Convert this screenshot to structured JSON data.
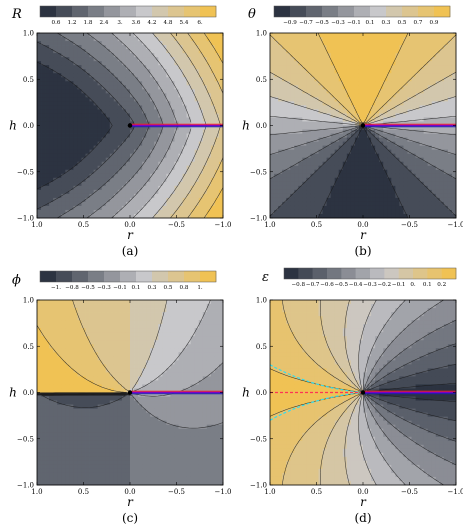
{
  "chart_data": [
    {
      "panel": "(a)",
      "type": "contour",
      "symbol": "R",
      "xlabel": "r",
      "ylabel": "h",
      "xlim": [
        1.0,
        -1.0
      ],
      "ylim": [
        -1.0,
        1.0
      ],
      "x_ticks": [
        "1.0",
        "0.5",
        "0.0",
        "−0.5",
        "−1.0"
      ],
      "y_ticks": [
        "1.0",
        "0.5",
        "0.0",
        "−0.5",
        "−1.0"
      ],
      "colorbar_ticks": [
        "0.6",
        "1.2",
        "1.8",
        "2.4",
        "3.",
        "3.6",
        "4.2",
        "4.8",
        "5.4",
        "6."
      ],
      "contour_levels": [
        0.6,
        1.2,
        1.8,
        2.4,
        3.0,
        3.6,
        4.2,
        4.8,
        5.4,
        6.0
      ],
      "caption": "(a)"
    },
    {
      "panel": "(b)",
      "type": "contour",
      "symbol": "θ",
      "xlabel": "r",
      "ylabel": "h",
      "xlim": [
        1.0,
        -1.0
      ],
      "ylim": [
        -1.0,
        1.0
      ],
      "x_ticks": [
        "1.0",
        "0.5",
        "0.0",
        "−0.5",
        "−1.0"
      ],
      "y_ticks": [
        "1.0",
        "0.5",
        "0.0",
        "−0.5",
        "−1.0"
      ],
      "colorbar_ticks": [
        "−0.9",
        "−0.7",
        "−0.5",
        "−0.3",
        "−0.1",
        "0.1",
        "0.3",
        "0.5",
        "0.7",
        "0.9"
      ],
      "contour_levels": [
        -0.9,
        -0.7,
        -0.5,
        -0.3,
        -0.1,
        0.1,
        0.3,
        0.5,
        0.7,
        0.9
      ],
      "caption": "(b)"
    },
    {
      "panel": "(c)",
      "type": "contour",
      "symbol": "ϕ",
      "xlabel": "r",
      "ylabel": "h",
      "xlim": [
        1.0,
        -1.0
      ],
      "ylim": [
        -1.0,
        1.0
      ],
      "x_ticks": [
        "1.0",
        "0.5",
        "0.0",
        "−0.5",
        "−1.0"
      ],
      "y_ticks": [
        "1.0",
        "0.5",
        "0.0",
        "−0.5",
        "−1.0"
      ],
      "colorbar_ticks": [
        "−1.",
        "−0.8",
        "−0.5",
        "−0.3",
        "−0.1",
        "0.1",
        "0.3",
        "0.5",
        "0.8",
        "1."
      ],
      "contour_levels": [
        -1.0,
        -0.8,
        -0.5,
        -0.3,
        -0.1,
        0.1,
        0.3,
        0.5,
        0.8,
        1.0
      ],
      "caption": "(c)"
    },
    {
      "panel": "(d)",
      "type": "contour",
      "symbol": "ε",
      "xlabel": "r",
      "ylabel": "h",
      "xlim": [
        1.0,
        -1.0
      ],
      "ylim": [
        -1.0,
        1.0
      ],
      "x_ticks": [
        "1.0",
        "0.5",
        "0.0",
        "−0.5",
        "−1.0"
      ],
      "y_ticks": [
        "1.0",
        "0.5",
        "0.0",
        "−0.5",
        "−1.0"
      ],
      "colorbar_ticks": [
        "−0.8",
        "−0.7",
        "−0.6",
        "−0.5",
        "−0.4",
        "−0.3",
        "−0.2",
        "−0.1",
        "0.",
        "0.1",
        "0.2"
      ],
      "contour_levels": [
        -0.8,
        -0.7,
        -0.6,
        -0.5,
        -0.4,
        -0.3,
        -0.2,
        -0.1,
        0.0,
        0.1,
        0.2
      ],
      "caption": "(d)"
    }
  ],
  "colors": {
    "low": "#2c3341",
    "mid": "#c8c8cb",
    "high": "#f0c254",
    "branch_cut": "#7a00c8",
    "branch_cut_red": "#ff1e1e",
    "branch_cut_blue": "#1a20b0",
    "dashed_red": "#ff3355",
    "dashed_cyan": "#33ddee",
    "contour_line": "#1a1a1a"
  }
}
